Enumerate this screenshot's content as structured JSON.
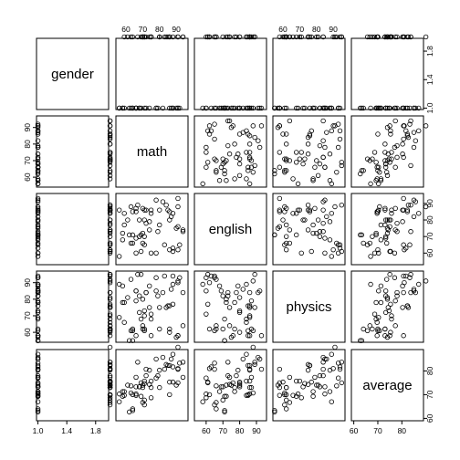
{
  "chart_data": {
    "type": "scatter-matrix",
    "title": "",
    "variables": [
      "gender",
      "math",
      "english",
      "physics",
      "average"
    ],
    "axes": {
      "gender": {
        "lim": [
          0.98,
          1.98
        ],
        "ticks": [
          1.0,
          1.4,
          1.8
        ],
        "tick_labels": [
          "1.0",
          "1.4",
          "1.8"
        ]
      },
      "math": {
        "lim": [
          54,
          97
        ],
        "ticks": [
          60,
          70,
          80,
          90
        ],
        "tick_labels": [
          "60",
          "70",
          "80",
          "90"
        ]
      },
      "english": {
        "lim": [
          53,
          96
        ],
        "ticks": [
          60,
          70,
          80,
          90
        ],
        "tick_labels": [
          "60",
          "70",
          "80",
          "90"
        ]
      },
      "physics": {
        "lim": [
          54,
          97
        ],
        "ticks": [
          60,
          70,
          80,
          90
        ],
        "tick_labels": [
          "60",
          "70",
          "80",
          "90"
        ]
      },
      "average": {
        "lim": [
          59,
          89
        ],
        "ticks": [
          60,
          70,
          80
        ],
        "tick_labels": [
          "60",
          "70",
          "80"
        ]
      }
    },
    "observations": {
      "gender": [
        1,
        1,
        1,
        1,
        1,
        1,
        1,
        1,
        1,
        1,
        1,
        1,
        1,
        1,
        1,
        1,
        1,
        1,
        1,
        1,
        1,
        1,
        1,
        1,
        1,
        1,
        1,
        1,
        1,
        1,
        1,
        2,
        2,
        2,
        2,
        2,
        2,
        2,
        2,
        2,
        2,
        2,
        2,
        2,
        2,
        2,
        2,
        2,
        2,
        2,
        2,
        2,
        2,
        2,
        2,
        2,
        2,
        2,
        2,
        2
      ],
      "math": [
        58,
        66,
        92,
        62,
        74,
        63,
        79,
        82,
        58,
        68,
        64,
        91,
        88,
        64,
        88,
        71,
        87,
        78,
        56,
        66,
        90,
        66,
        59,
        69,
        91,
        56,
        68,
        86,
        78,
        66,
        72,
        91,
        80,
        74,
        85,
        80,
        84,
        70,
        71,
        67,
        94,
        59,
        72,
        88,
        91,
        94,
        63,
        86,
        71,
        70,
        75,
        75,
        64,
        69,
        86,
        61,
        83,
        70,
        71,
        75
      ],
      "english": [
        68,
        60,
        65,
        71,
        79,
        88,
        73,
        91,
        72,
        80,
        66,
        93,
        63,
        71,
        84,
        80,
        82,
        60,
        86,
        87,
        75,
        85,
        77,
        71,
        76,
        58,
        70,
        85,
        92,
        69,
        86,
        88,
        77,
        74,
        86,
        86,
        89,
        66,
        86,
        89,
        74,
        84,
        78,
        61,
        62,
        73,
        66,
        80,
        65,
        72,
        86,
        84,
        85,
        61,
        62,
        80,
        65,
        87,
        70,
        60
      ],
      "physics": [
        88,
        85,
        93,
        55,
        88,
        61,
        82,
        84,
        78,
        72,
        62,
        58,
        94,
        55,
        89,
        73,
        86,
        93,
        69,
        79,
        57,
        58,
        78,
        68,
        58,
        89,
        82,
        76,
        85,
        85,
        84,
        91,
        62,
        75,
        76,
        75,
        75,
        64,
        70,
        95,
        64,
        66,
        84,
        77,
        90,
        84,
        92,
        60,
        61,
        80,
        58,
        68,
        61,
        95,
        62,
        81,
        94,
        62,
        62,
        71
      ],
      "average": [
        71.3,
        70.3,
        83.3,
        62.7,
        80.3,
        70.7,
        78.0,
        85.7,
        69.3,
        73.3,
        64.0,
        80.7,
        81.7,
        63.3,
        87.0,
        74.7,
        85.0,
        77.0,
        70.3,
        77.3,
        74.0,
        69.7,
        71.3,
        69.3,
        75.0,
        67.0,
        73.3,
        82.3,
        85.0,
        73.3,
        80.7,
        90.0,
        73.0,
        74.3,
        82.3,
        80.3,
        82.7,
        66.7,
        75.7,
        83.7,
        77.3,
        69.7,
        78.0,
        75.3,
        81.0,
        83.7,
        73.7,
        75.3,
        65.7,
        74.0,
        73.0,
        75.7,
        70.0,
        75.0,
        70.0,
        74.0,
        80.7,
        73.0,
        67.7,
        68.7
      ]
    }
  }
}
